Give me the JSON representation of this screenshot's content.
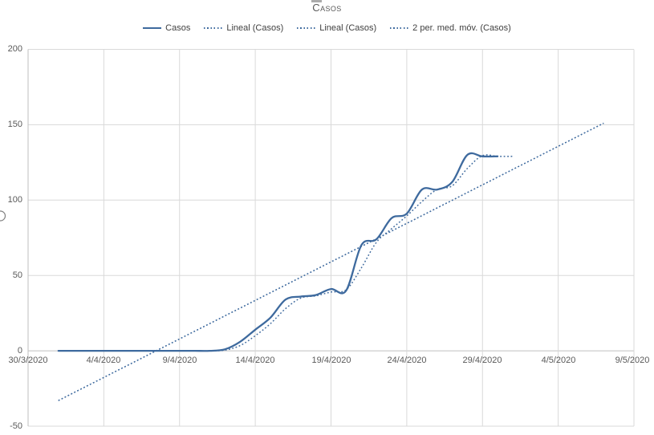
{
  "title": "Casos",
  "legend": {
    "items": [
      {
        "label": "Casos",
        "style": "solid"
      },
      {
        "label": "Lineal (Casos)",
        "style": "dotted"
      },
      {
        "label": "Lineal (Casos)",
        "style": "dotted"
      },
      {
        "label": "2 per. med. móv. (Casos)",
        "style": "dotted"
      }
    ]
  },
  "colors": {
    "series": "#3E6A9E",
    "gridline": "#D9D9D9",
    "axis_line": "#BFBFBF",
    "tick_text": "#595959",
    "legend_text": "#404040",
    "background": "#FFFFFF"
  },
  "chart_data": {
    "type": "line",
    "title": "Casos",
    "grid": true,
    "legend_position": "top",
    "x_axis": {
      "tick_labels": [
        "30/3/2020",
        "4/4/2020",
        "9/4/2020",
        "14/4/2020",
        "19/4/2020",
        "24/4/2020",
        "29/4/2020",
        "4/5/2020",
        "9/5/2020"
      ],
      "tick_days": [
        0,
        5,
        10,
        15,
        20,
        25,
        30,
        35,
        40
      ],
      "range_days": [
        0,
        40
      ]
    },
    "y_axis": {
      "tick_labels": [
        "200",
        "150",
        "100",
        "50",
        "0",
        "-50"
      ],
      "tick_values": [
        200,
        150,
        100,
        50,
        0,
        -50
      ],
      "range": [
        -50,
        200
      ]
    },
    "series": [
      {
        "name": "Casos",
        "type": "smooth-line",
        "line": "solid",
        "dates": [
          "1/4/2020",
          "2/4/2020",
          "3/4/2020",
          "4/4/2020",
          "5/4/2020",
          "6/4/2020",
          "7/4/2020",
          "8/4/2020",
          "9/4/2020",
          "10/4/2020",
          "11/4/2020",
          "12/4/2020",
          "13/4/2020",
          "14/4/2020",
          "15/4/2020",
          "16/4/2020",
          "17/4/2020",
          "18/4/2020",
          "19/4/2020",
          "20/4/2020",
          "21/4/2020",
          "22/4/2020",
          "23/4/2020",
          "24/4/2020",
          "25/4/2020",
          "26/4/2020",
          "27/4/2020",
          "28/4/2020",
          "29/4/2020",
          "30/4/2020"
        ],
        "days": [
          2,
          3,
          4,
          5,
          6,
          7,
          8,
          9,
          10,
          11,
          12,
          13,
          14,
          15,
          16,
          17,
          18,
          19,
          20,
          21,
          22,
          23,
          24,
          25,
          26,
          27,
          28,
          29,
          30,
          31
        ],
        "values": [
          0,
          0,
          0,
          0,
          0,
          0,
          0,
          0,
          0,
          0,
          0,
          1,
          6,
          14,
          22,
          34,
          36,
          37,
          41,
          40,
          70,
          74,
          88,
          91,
          107,
          107,
          112,
          130,
          129,
          129
        ]
      },
      {
        "name": "Lineal (Casos)",
        "type": "linear-trend",
        "line": "dotted",
        "start": {
          "day": 2,
          "value": -33
        },
        "end": {
          "day": 38,
          "value": 151
        }
      },
      {
        "name": "Lineal (Casos)",
        "type": "linear-trend",
        "line": "dotted",
        "start": {
          "day": 2,
          "value": -33
        },
        "end": {
          "day": 38,
          "value": 151
        }
      },
      {
        "name": "2 per. med. móv. (Casos)",
        "type": "moving-average",
        "line": "dotted",
        "period": 2,
        "derived_from": "Casos",
        "tail_days": 1
      }
    ]
  }
}
